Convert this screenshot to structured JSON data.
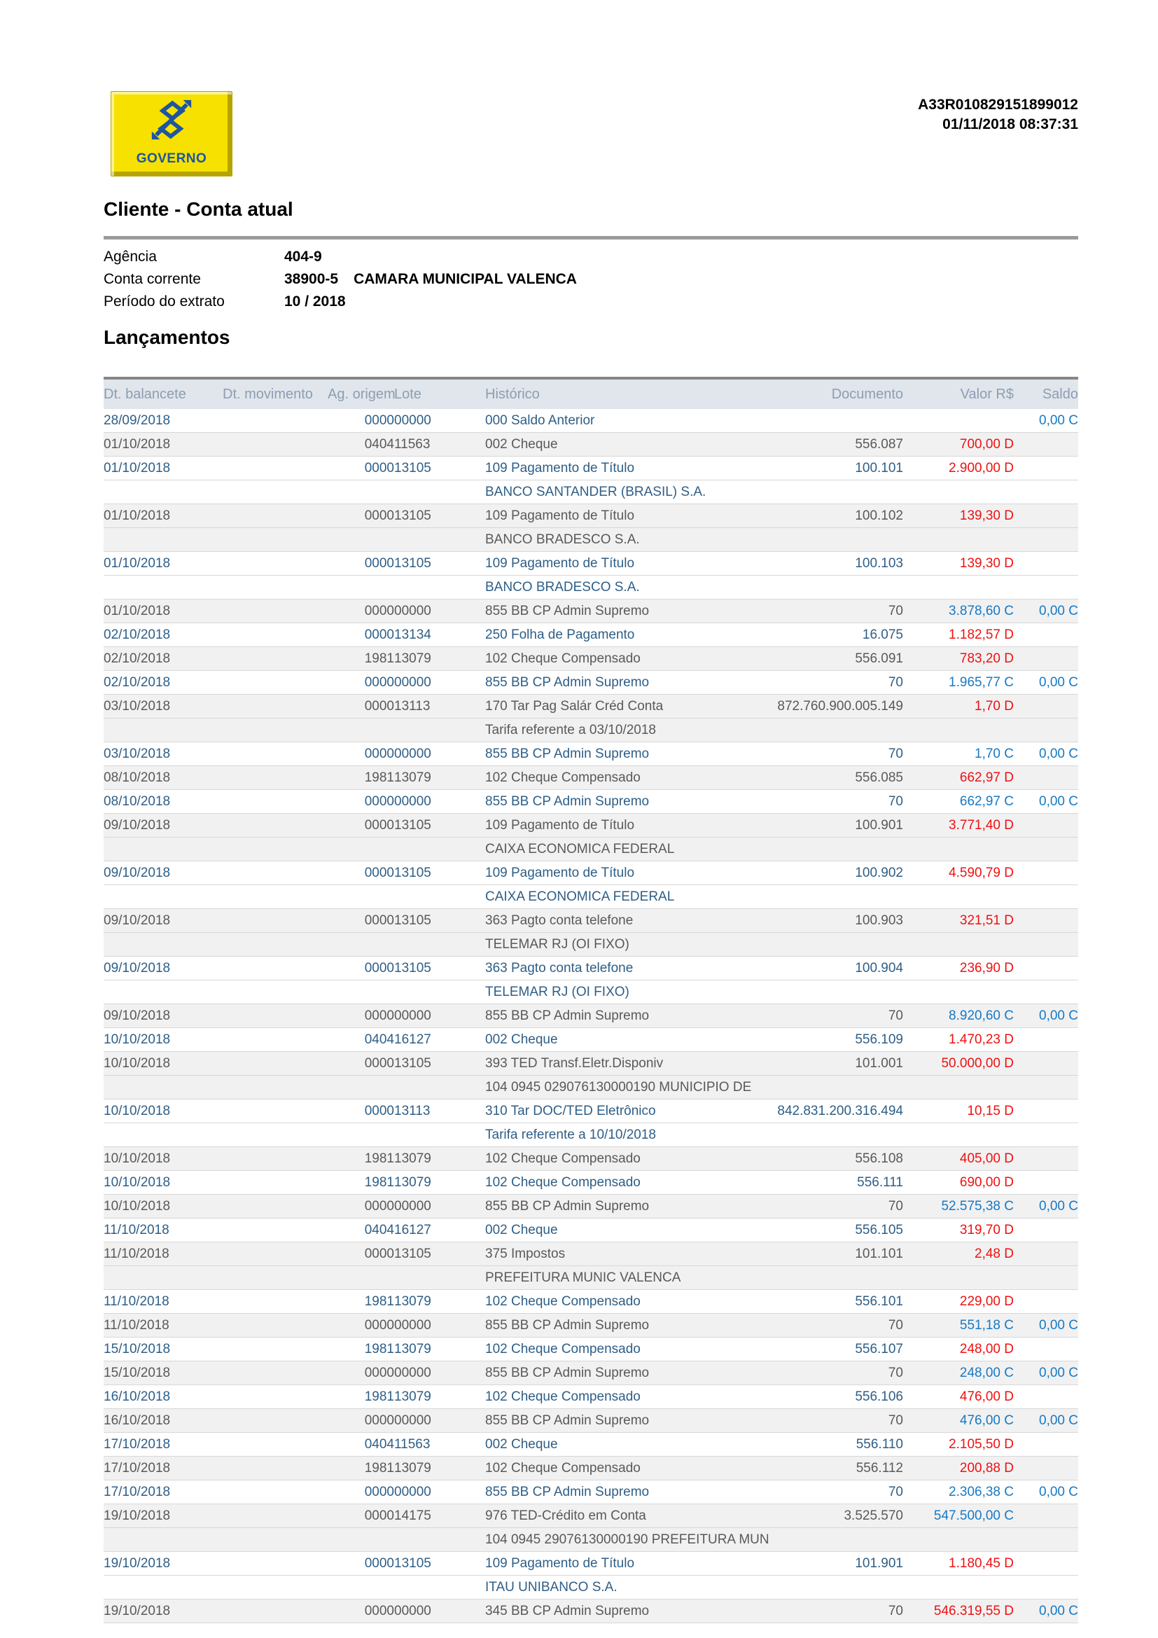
{
  "report": {
    "code": "A33R010829151899012",
    "datetime": "01/11/2018 08:37:31"
  },
  "logo": {
    "caption": "GOVERNO"
  },
  "page_title": "Cliente - Conta atual",
  "account_fields": [
    {
      "label": "Agência",
      "value": "404-9",
      "extra": ""
    },
    {
      "label": "Conta corrente",
      "value": "38900-5",
      "extra": "CAMARA MUNICIPAL VALENCA"
    },
    {
      "label": "Período do extrato",
      "value": "10 / 2018",
      "extra": ""
    }
  ],
  "section_title": "Lançamentos",
  "table": {
    "columns": [
      "Dt. balancete",
      "Dt. movimento",
      "Ag. origem",
      "Lote",
      "Histórico",
      "Documento",
      "Valor R$",
      "Saldo"
    ],
    "rows": [
      {
        "dt": "28/09/2018",
        "mov": "",
        "ag": "0000",
        "lote": "00000",
        "historico": "000 Saldo Anterior",
        "documento": "",
        "valor": "",
        "saldo": "0,00 C",
        "shaded": false
      },
      {
        "dt": "01/10/2018",
        "mov": "",
        "ag": "0404",
        "lote": "11563",
        "historico": "002 Cheque",
        "documento": "556.087",
        "valor": "700,00 D",
        "saldo": "",
        "shaded": true
      },
      {
        "dt": "01/10/2018",
        "mov": "",
        "ag": "0000",
        "lote": "13105",
        "historico": "109 Pagamento de Título",
        "documento": "100.101",
        "valor": "2.900,00 D",
        "saldo": "",
        "shaded": false
      },
      {
        "continuation": "BANCO SANTANDER (BRASIL) S.A.",
        "shaded": false
      },
      {
        "dt": "01/10/2018",
        "mov": "",
        "ag": "0000",
        "lote": "13105",
        "historico": "109 Pagamento de Título",
        "documento": "100.102",
        "valor": "139,30 D",
        "saldo": "",
        "shaded": true
      },
      {
        "continuation": "BANCO BRADESCO S.A.",
        "shaded": true
      },
      {
        "dt": "01/10/2018",
        "mov": "",
        "ag": "0000",
        "lote": "13105",
        "historico": "109 Pagamento de Título",
        "documento": "100.103",
        "valor": "139,30 D",
        "saldo": "",
        "shaded": false
      },
      {
        "continuation": "BANCO BRADESCO S.A.",
        "shaded": false
      },
      {
        "dt": "01/10/2018",
        "mov": "",
        "ag": "0000",
        "lote": "00000",
        "historico": "855 BB CP Admin Supremo",
        "documento": "70",
        "valor": "3.878,60 C",
        "saldo": "0,00 C",
        "shaded": true
      },
      {
        "dt": "02/10/2018",
        "mov": "",
        "ag": "0000",
        "lote": "13134",
        "historico": "250 Folha de Pagamento",
        "documento": "16.075",
        "valor": "1.182,57 D",
        "saldo": "",
        "shaded": false
      },
      {
        "dt": "02/10/2018",
        "mov": "",
        "ag": "1981",
        "lote": "13079",
        "historico": "102 Cheque Compensado",
        "documento": "556.091",
        "valor": "783,20 D",
        "saldo": "",
        "shaded": true
      },
      {
        "dt": "02/10/2018",
        "mov": "",
        "ag": "0000",
        "lote": "00000",
        "historico": "855 BB CP Admin Supremo",
        "documento": "70",
        "valor": "1.965,77 C",
        "saldo": "0,00 C",
        "shaded": false
      },
      {
        "dt": "03/10/2018",
        "mov": "",
        "ag": "0000",
        "lote": "13113",
        "historico": "170 Tar Pag Salár Créd Conta",
        "documento": "872.760.900.005.149",
        "valor": "1,70 D",
        "saldo": "",
        "shaded": true
      },
      {
        "continuation": "Tarifa referente a 03/10/2018",
        "shaded": true
      },
      {
        "dt": "03/10/2018",
        "mov": "",
        "ag": "0000",
        "lote": "00000",
        "historico": "855 BB CP Admin Supremo",
        "documento": "70",
        "valor": "1,70 C",
        "saldo": "0,00 C",
        "shaded": false
      },
      {
        "dt": "08/10/2018",
        "mov": "",
        "ag": "1981",
        "lote": "13079",
        "historico": "102 Cheque Compensado",
        "documento": "556.085",
        "valor": "662,97 D",
        "saldo": "",
        "shaded": true
      },
      {
        "dt": "08/10/2018",
        "mov": "",
        "ag": "0000",
        "lote": "00000",
        "historico": "855 BB CP Admin Supremo",
        "documento": "70",
        "valor": "662,97 C",
        "saldo": "0,00 C",
        "shaded": false
      },
      {
        "dt": "09/10/2018",
        "mov": "",
        "ag": "0000",
        "lote": "13105",
        "historico": "109 Pagamento de Título",
        "documento": "100.901",
        "valor": "3.771,40 D",
        "saldo": "",
        "shaded": true
      },
      {
        "continuation": "CAIXA ECONOMICA FEDERAL",
        "shaded": true
      },
      {
        "dt": "09/10/2018",
        "mov": "",
        "ag": "0000",
        "lote": "13105",
        "historico": "109 Pagamento de Título",
        "documento": "100.902",
        "valor": "4.590,79 D",
        "saldo": "",
        "shaded": false
      },
      {
        "continuation": "CAIXA ECONOMICA FEDERAL",
        "shaded": false
      },
      {
        "dt": "09/10/2018",
        "mov": "",
        "ag": "0000",
        "lote": "13105",
        "historico": "363 Pagto conta telefone",
        "documento": "100.903",
        "valor": "321,51 D",
        "saldo": "",
        "shaded": true
      },
      {
        "continuation": "TELEMAR RJ (OI FIXO)",
        "shaded": true
      },
      {
        "dt": "09/10/2018",
        "mov": "",
        "ag": "0000",
        "lote": "13105",
        "historico": "363 Pagto conta telefone",
        "documento": "100.904",
        "valor": "236,90 D",
        "saldo": "",
        "shaded": false
      },
      {
        "continuation": "TELEMAR RJ (OI FIXO)",
        "shaded": false
      },
      {
        "dt": "09/10/2018",
        "mov": "",
        "ag": "0000",
        "lote": "00000",
        "historico": "855 BB CP Admin Supremo",
        "documento": "70",
        "valor": "8.920,60 C",
        "saldo": "0,00 C",
        "shaded": true
      },
      {
        "dt": "10/10/2018",
        "mov": "",
        "ag": "0404",
        "lote": "16127",
        "historico": "002 Cheque",
        "documento": "556.109",
        "valor": "1.470,23 D",
        "saldo": "",
        "shaded": false
      },
      {
        "dt": "10/10/2018",
        "mov": "",
        "ag": "0000",
        "lote": "13105",
        "historico": "393 TED Transf.Eletr.Disponiv",
        "documento": "101.001",
        "valor": "50.000,00 D",
        "saldo": "",
        "shaded": true
      },
      {
        "continuation": "104 0945 029076130000190 MUNICIPIO DE",
        "shaded": true
      },
      {
        "dt": "10/10/2018",
        "mov": "",
        "ag": "0000",
        "lote": "13113",
        "historico": "310 Tar DOC/TED Eletrônico",
        "documento": "842.831.200.316.494",
        "valor": "10,15 D",
        "saldo": "",
        "shaded": false
      },
      {
        "continuation": "Tarifa referente a 10/10/2018",
        "shaded": false
      },
      {
        "dt": "10/10/2018",
        "mov": "",
        "ag": "1981",
        "lote": "13079",
        "historico": "102 Cheque Compensado",
        "documento": "556.108",
        "valor": "405,00 D",
        "saldo": "",
        "shaded": true
      },
      {
        "dt": "10/10/2018",
        "mov": "",
        "ag": "1981",
        "lote": "13079",
        "historico": "102 Cheque Compensado",
        "documento": "556.111",
        "valor": "690,00 D",
        "saldo": "",
        "shaded": false
      },
      {
        "dt": "10/10/2018",
        "mov": "",
        "ag": "0000",
        "lote": "00000",
        "historico": "855 BB CP Admin Supremo",
        "documento": "70",
        "valor": "52.575,38 C",
        "saldo": "0,00 C",
        "shaded": true
      },
      {
        "dt": "11/10/2018",
        "mov": "",
        "ag": "0404",
        "lote": "16127",
        "historico": "002 Cheque",
        "documento": "556.105",
        "valor": "319,70 D",
        "saldo": "",
        "shaded": false
      },
      {
        "dt": "11/10/2018",
        "mov": "",
        "ag": "0000",
        "lote": "13105",
        "historico": "375 Impostos",
        "documento": "101.101",
        "valor": "2,48 D",
        "saldo": "",
        "shaded": true
      },
      {
        "continuation": "PREFEITURA MUNIC VALENCA",
        "shaded": true
      },
      {
        "dt": "11/10/2018",
        "mov": "",
        "ag": "1981",
        "lote": "13079",
        "historico": "102 Cheque Compensado",
        "documento": "556.101",
        "valor": "229,00 D",
        "saldo": "",
        "shaded": false
      },
      {
        "dt": "11/10/2018",
        "mov": "",
        "ag": "0000",
        "lote": "00000",
        "historico": "855 BB CP Admin Supremo",
        "documento": "70",
        "valor": "551,18 C",
        "saldo": "0,00 C",
        "shaded": true
      },
      {
        "dt": "15/10/2018",
        "mov": "",
        "ag": "1981",
        "lote": "13079",
        "historico": "102 Cheque Compensado",
        "documento": "556.107",
        "valor": "248,00 D",
        "saldo": "",
        "shaded": false
      },
      {
        "dt": "15/10/2018",
        "mov": "",
        "ag": "0000",
        "lote": "00000",
        "historico": "855 BB CP Admin Supremo",
        "documento": "70",
        "valor": "248,00 C",
        "saldo": "0,00 C",
        "shaded": true
      },
      {
        "dt": "16/10/2018",
        "mov": "",
        "ag": "1981",
        "lote": "13079",
        "historico": "102 Cheque Compensado",
        "documento": "556.106",
        "valor": "476,00 D",
        "saldo": "",
        "shaded": false
      },
      {
        "dt": "16/10/2018",
        "mov": "",
        "ag": "0000",
        "lote": "00000",
        "historico": "855 BB CP Admin Supremo",
        "documento": "70",
        "valor": "476,00 C",
        "saldo": "0,00 C",
        "shaded": true
      },
      {
        "dt": "17/10/2018",
        "mov": "",
        "ag": "0404",
        "lote": "11563",
        "historico": "002 Cheque",
        "documento": "556.110",
        "valor": "2.105,50 D",
        "saldo": "",
        "shaded": false
      },
      {
        "dt": "17/10/2018",
        "mov": "",
        "ag": "1981",
        "lote": "13079",
        "historico": "102 Cheque Compensado",
        "documento": "556.112",
        "valor": "200,88 D",
        "saldo": "",
        "shaded": true
      },
      {
        "dt": "17/10/2018",
        "mov": "",
        "ag": "0000",
        "lote": "00000",
        "historico": "855 BB CP Admin Supremo",
        "documento": "70",
        "valor": "2.306,38 C",
        "saldo": "0,00 C",
        "shaded": false
      },
      {
        "dt": "19/10/2018",
        "mov": "",
        "ag": "0000",
        "lote": "14175",
        "historico": "976 TED-Crédito em Conta",
        "documento": "3.525.570",
        "valor": "547.500,00 C",
        "saldo": "",
        "shaded": true
      },
      {
        "continuation": "104 0945 29076130000190 PREFEITURA MUN",
        "shaded": true
      },
      {
        "dt": "19/10/2018",
        "mov": "",
        "ag": "0000",
        "lote": "13105",
        "historico": "109 Pagamento de Título",
        "documento": "101.901",
        "valor": "1.180,45 D",
        "saldo": "",
        "shaded": false
      },
      {
        "continuation": "ITAU UNIBANCO S.A.",
        "shaded": false
      },
      {
        "dt": "19/10/2018",
        "mov": "",
        "ag": "0000",
        "lote": "00000",
        "historico": "345 BB CP Admin Supremo",
        "documento": "70",
        "valor": "546.319,55 D",
        "saldo": "0,00 C",
        "shaded": true
      }
    ]
  },
  "colors": {
    "credit_blue": "#1779c4",
    "debit_red": "#ee1111",
    "row_text_blue": "#2e5e86",
    "row_text_gray": "#58595b",
    "shaded_row_bg": "#f1f1f2",
    "header_bg": "#e0e6ec",
    "header_text": "#8e9db2",
    "rule_gray": "#9b9b9b",
    "logo_yellow": "#f6e100",
    "logo_blue": "#1d55a0"
  }
}
